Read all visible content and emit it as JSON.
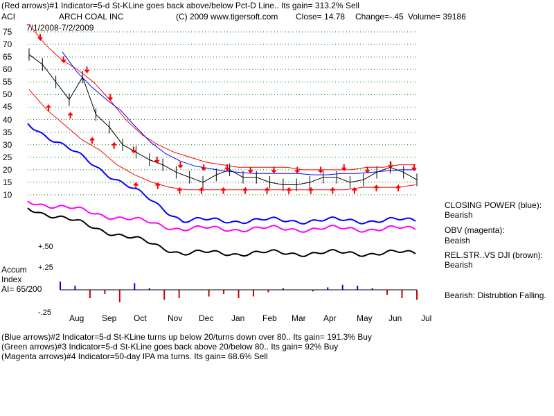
{
  "header": {
    "line1": "(Red arrows)#1 Indicator=5-d St-KLine goes back above/below Pct-D Line.. Its gain= 313.2% Sell",
    "ticker": "ACI",
    "company": "ARCH COAL INC",
    "copyright": "(C) 2009 www.tigersoft.com",
    "close": "Close=  14.78",
    "change": "Change=-.45",
    "volume": "Volume=  39186",
    "date_range": "7/1/2008-7/2/2009"
  },
  "price_panel": {
    "y_ticks": [
      "75",
      "70",
      "65",
      "60",
      "55",
      "50",
      "45",
      "40",
      "35",
      "30",
      "25",
      "20",
      "15",
      "10"
    ]
  },
  "side_labels": {
    "closing_power_title": "CLOSING POWER (blue):",
    "closing_power_value": "Bearish",
    "obv_title": "OBV (magenta):",
    "obv_value": "Beaish",
    "relstr_title": "REL.STR..VS DJI (brown):",
    "relstr_value": "Bearish",
    "ai_verdict": "Bearish:  Distrubtion Falling."
  },
  "accum_panel": {
    "title_line1": "Accum",
    "title_line2": "Index",
    "ai_value": "AI= 65/200",
    "tick_top": "+.50",
    "tick_mid": "+.25",
    "tick_bottom": "-.25"
  },
  "months": [
    "Aug",
    "Sep",
    "Oct",
    "Nov",
    "Dec",
    "Jan",
    "Feb",
    "Mar",
    "Apr",
    "May",
    "Jun",
    "Jul"
  ],
  "footer": {
    "blue_arrows": "(Blue arrows)#2 Indicator=5-d St-KLine turns up below 20/turns down over 80..  Its gain= 191.3% Buy",
    "green_arrows": "(Green arrows)#3 Indicator=5-d St-KLine goes back above 20/below 80..  Its gain= 92% Buy",
    "magenta_arrows": "(Magenta arrows)#4 Indicator=50-day IPA ma turns.  Its gain= 68.6% Sell"
  },
  "colors": {
    "price": "#000000",
    "band": "#ff0000",
    "blue_ma": "#0000ff",
    "closing_power": "#0000ff",
    "obv": "#ff00ff",
    "relstr": "#000000",
    "accum_pos": "#0000ff",
    "accum_neg": "#cc0000",
    "arrow": "#ff0000",
    "grid": "#008000"
  },
  "chart_data": {
    "type": "line",
    "title": "ARCH COAL INC",
    "x_labels": [
      "Jul",
      "Aug",
      "Sep",
      "Oct",
      "Nov",
      "Dec",
      "Jan",
      "Feb",
      "Mar",
      "Apr",
      "May",
      "Jun",
      "Jul"
    ],
    "ylim": [
      10,
      75
    ],
    "close": [
      66,
      62,
      55,
      48,
      57,
      42,
      37,
      30,
      27,
      24,
      22,
      19,
      17,
      15,
      18,
      20,
      17,
      17,
      15,
      14,
      14,
      15,
      17,
      17,
      15,
      16,
      19,
      21,
      19,
      16
    ],
    "upper_band": [
      78,
      70,
      64,
      60,
      55,
      48,
      40,
      34,
      30,
      27,
      25,
      23,
      22,
      21,
      21,
      21,
      21,
      20,
      20,
      20,
      20,
      21,
      21,
      22,
      22
    ],
    "lower_band": [
      52,
      44,
      38,
      32,
      28,
      22,
      18,
      15,
      13,
      12,
      12,
      12,
      12,
      12,
      12,
      12,
      12,
      12,
      12,
      13,
      13,
      13,
      14
    ],
    "sell_arrow_prices": [
      72,
      63,
      59,
      48,
      27,
      23,
      21,
      20,
      20,
      19,
      19,
      19,
      19,
      20,
      19,
      21,
      20
    ],
    "buy_arrow_prices": [
      45,
      42,
      32,
      30,
      14,
      14,
      12,
      12,
      12,
      12,
      12,
      12,
      12,
      12,
      12,
      13,
      13
    ],
    "accum_index": [
      0.1,
      0.05,
      -0.1,
      -0.05,
      -0.15,
      0.08,
      0.02,
      -0.12,
      -0.1,
      0.0,
      -0.08,
      -0.05,
      -0.1,
      -0.08,
      -0.03,
      0.02,
      0.0,
      -0.02,
      0.03,
      0.06,
      0.05,
      0.02,
      -0.06,
      -0.1,
      -0.12
    ],
    "accum_ylim": [
      -0.25,
      0.5
    ]
  }
}
